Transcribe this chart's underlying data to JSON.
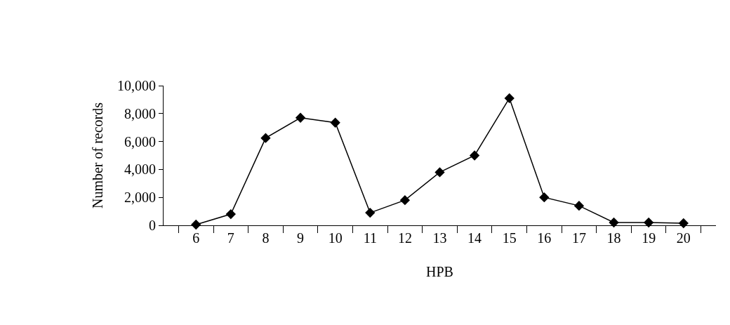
{
  "chart_data": {
    "type": "line",
    "xlabel": "HPB",
    "ylabel": "Number of records",
    "categories": [
      "6",
      "7",
      "8",
      "9",
      "10",
      "11",
      "12",
      "13",
      "14",
      "15",
      "16",
      "17",
      "18",
      "19",
      "20"
    ],
    "series": [
      {
        "color": "#000000",
        "values": [
          50,
          800,
          6250,
          7700,
          7350,
          900,
          1800,
          3800,
          5000,
          9100,
          2000,
          1400,
          200,
          200,
          150
        ]
      }
    ],
    "ylim": [
      0,
      10000
    ],
    "yticks": [
      0,
      {
        "value": 2000,
        "label": "2,000"
      },
      {
        "value": 4000,
        "label": "4,000"
      },
      {
        "value": 6000,
        "label": "6,000"
      },
      {
        "value": 8000,
        "label": "8,000"
      },
      {
        "value": 10000,
        "label": "10,000"
      }
    ],
    "legend": false,
    "marker": "diamond",
    "line_style": "solid"
  }
}
